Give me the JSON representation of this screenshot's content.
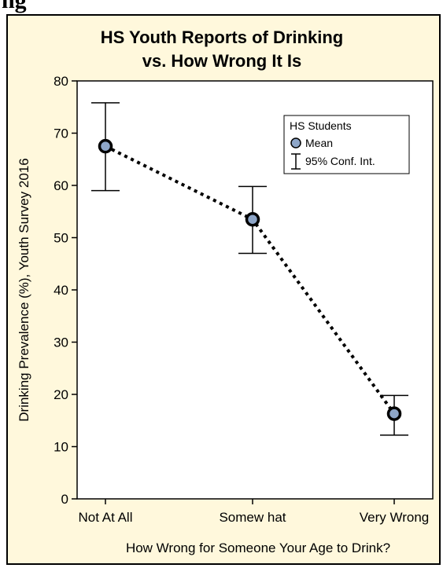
{
  "header_fragment": "ng",
  "chart_data": {
    "type": "scatter",
    "title": [
      "HS Youth Reports of Drinking",
      "vs. How Wrong It Is"
    ],
    "xlabel": "How Wrong for Someone Your Age to Drink?",
    "ylabel": "Drinking Prevalence (%), Youth Survey 2016",
    "categories": [
      "Not At All",
      "Somew hat",
      "Very Wrong"
    ],
    "ylim": [
      0,
      80
    ],
    "yticks": [
      0,
      10,
      20,
      30,
      40,
      50,
      60,
      70,
      80
    ],
    "grid": false,
    "legend": {
      "title": "HS Students",
      "placement": "top-right",
      "entries": [
        "Mean",
        "95% Conf. Int."
      ]
    },
    "series": [
      {
        "name": "Mean",
        "values": [
          67.5,
          53.5,
          16.3
        ],
        "ci_low": [
          59.0,
          47.0,
          12.2
        ],
        "ci_high": [
          75.8,
          59.8,
          19.8
        ]
      }
    ],
    "colors": {
      "background": "#fff8dc",
      "plot_area": "#ffffff",
      "marker_fill": "#8ea6c8",
      "line": "#000000"
    }
  }
}
